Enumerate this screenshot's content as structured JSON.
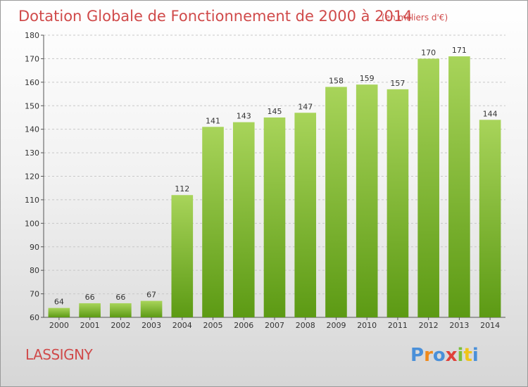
{
  "header": {
    "title": "Dotation Globale de Fonctionnement de 2000 à 2014",
    "unit": "(en milliers d'€)"
  },
  "commune": "LASSIGNY",
  "logo": {
    "text": "Proxiti",
    "letters": [
      {
        "ch": "P",
        "color": "#4a90d9"
      },
      {
        "ch": "r",
        "color": "#f08a1c"
      },
      {
        "ch": "o",
        "color": "#4a90d9"
      },
      {
        "ch": "x",
        "color": "#e0413a"
      },
      {
        "ch": "i",
        "color": "#7bbf3a"
      },
      {
        "ch": "t",
        "color": "#f0c419"
      },
      {
        "ch": "i",
        "color": "#4a90d9"
      }
    ]
  },
  "colors": {
    "bar_light": "#a8d45a",
    "bar_dark": "#5c9a14",
    "title": "#d04a4a",
    "grid": "#c8c8c8",
    "axis": "#555555"
  },
  "chart_data": {
    "type": "bar",
    "title": "Dotation Globale de Fonctionnement de 2000 à 2014",
    "subtitle": "(en milliers d'€)",
    "xlabel": "",
    "ylabel": "",
    "categories": [
      "2000",
      "2001",
      "2002",
      "2003",
      "2004",
      "2005",
      "2006",
      "2007",
      "2008",
      "2009",
      "2010",
      "2011",
      "2012",
      "2013",
      "2014"
    ],
    "values": [
      64,
      66,
      66,
      67,
      112,
      141,
      143,
      145,
      147,
      158,
      159,
      157,
      170,
      171,
      144
    ],
    "ylim": [
      60,
      180
    ],
    "yticks": [
      60,
      70,
      80,
      90,
      100,
      110,
      120,
      130,
      140,
      150,
      160,
      170,
      180
    ],
    "grid": "horizontal dashed",
    "data_labels": true
  }
}
